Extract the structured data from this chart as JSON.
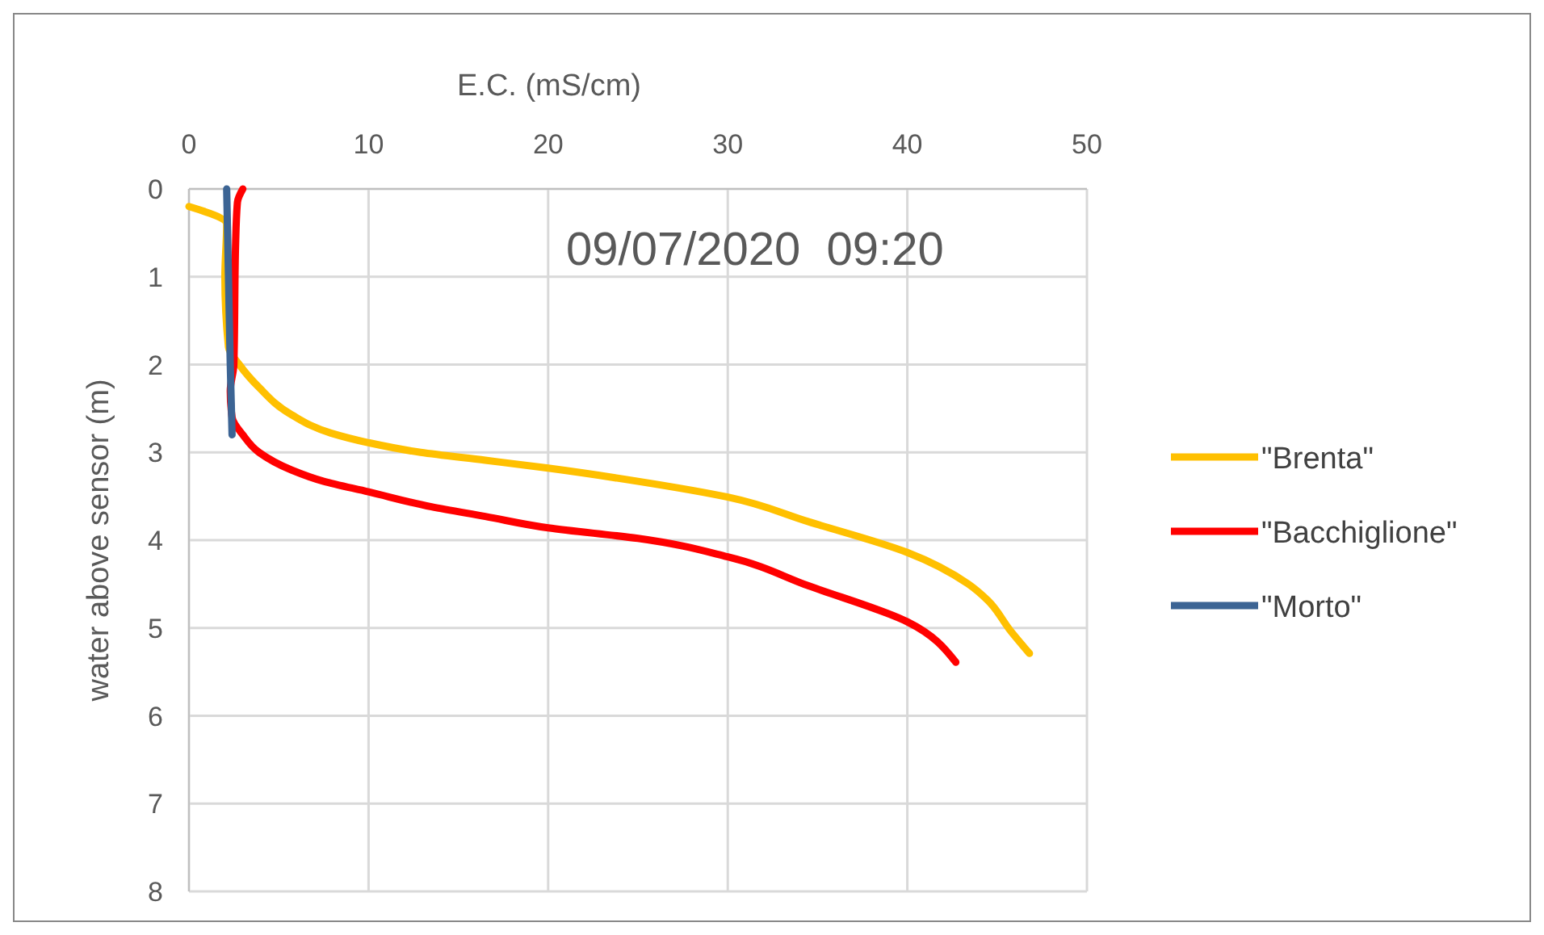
{
  "chart_data": {
    "type": "line",
    "xlabel": "E.C. (mS/cm)",
    "ylabel": "water above sensor (m)",
    "annotations": [
      "09/07/2020  09:20"
    ],
    "xlim": [
      0,
      50
    ],
    "xticks": [
      0,
      10,
      20,
      30,
      40,
      50
    ],
    "ylim": [
      8,
      0
    ],
    "yticks": [
      0,
      1,
      2,
      3,
      4,
      5,
      6,
      7,
      8
    ],
    "grid": true,
    "legend": "right",
    "marker": "none",
    "line_style": "solid",
    "series": [
      {
        "name": "\"Brenta\"",
        "color": "#ffc000",
        "x": [
          0,
          2.1,
          2.0,
          2.2,
          2.8,
          3.9,
          5.7,
          7.9,
          10,
          12.9,
          16.5,
          20,
          25,
          30,
          34.5,
          40,
          43.4,
          44.5,
          45.7,
          46.8
        ],
        "values": [
          0.2,
          0.4,
          1.0,
          1.8,
          2.0,
          2.26,
          2.57,
          2.78,
          2.89,
          3.0,
          3.09,
          3.18,
          3.33,
          3.51,
          3.79,
          4.14,
          4.5,
          4.69,
          5.02,
          5.29
        ]
      },
      {
        "name": "\"Bacchiglione\"",
        "color": "#ff0000",
        "x": [
          3.0,
          2.7,
          2.6,
          2.5,
          2.3,
          2.4,
          3.0,
          3.9,
          5.7,
          7.5,
          10,
          13.5,
          16.5,
          20,
          25,
          30,
          34.5,
          40,
          42.7
        ],
        "values": [
          0,
          0.15,
          0.6,
          2.0,
          2.3,
          2.6,
          2.8,
          3.0,
          3.2,
          3.33,
          3.45,
          3.62,
          3.73,
          3.86,
          3.98,
          4.19,
          4.52,
          4.93,
          5.39
        ]
      },
      {
        "name": "\"Morto\"",
        "color": "#3c6494",
        "x": [
          2.1,
          2.2,
          2.3,
          2.4
        ],
        "values": [
          0,
          1.0,
          2.0,
          2.8
        ]
      }
    ]
  }
}
